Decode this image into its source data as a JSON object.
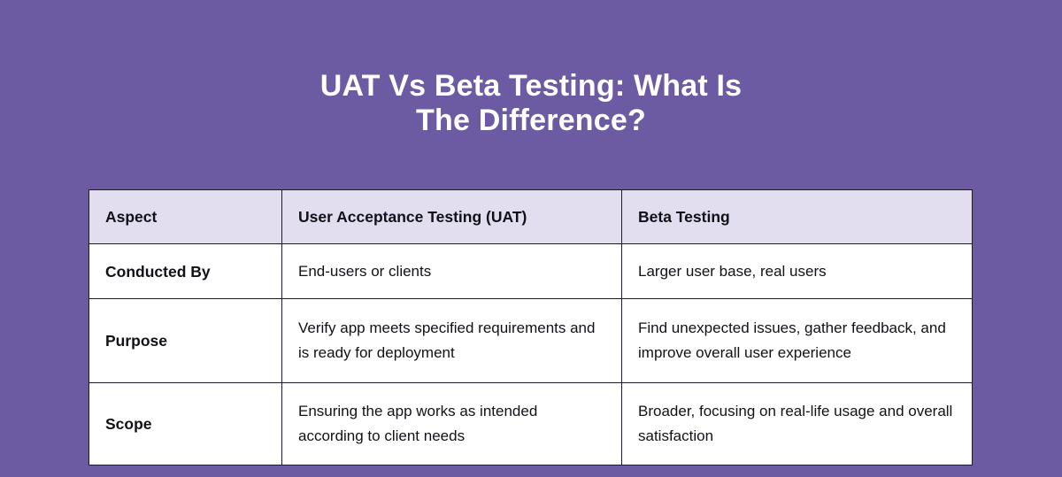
{
  "page": {
    "background_color": "#6c5ba3",
    "title_color": "#ffffff",
    "title_line1": "UAT Vs Beta Testing: What Is",
    "title_line2": "The Difference?"
  },
  "table": {
    "header_bg_color": "#e2def0",
    "border_color": "#1d1c28",
    "body_bg_color": "#ffffff",
    "text_color": "#111118",
    "columns": [
      "Aspect",
      "User Acceptance Testing (UAT)",
      "Beta Testing"
    ],
    "rows": [
      {
        "aspect": "Conducted By",
        "uat": "End-users or clients",
        "beta": "Larger user base, real users"
      },
      {
        "aspect": "Purpose",
        "uat": "Verify app meets specified requirements and is ready for deployment",
        "beta": "Find unexpected issues, gather feedback, and improve overall user experience"
      },
      {
        "aspect": "Scope",
        "uat": "Ensuring the app works as intended according to client needs",
        "beta": "Broader, focusing on real-life usage and overall satisfaction"
      }
    ]
  }
}
